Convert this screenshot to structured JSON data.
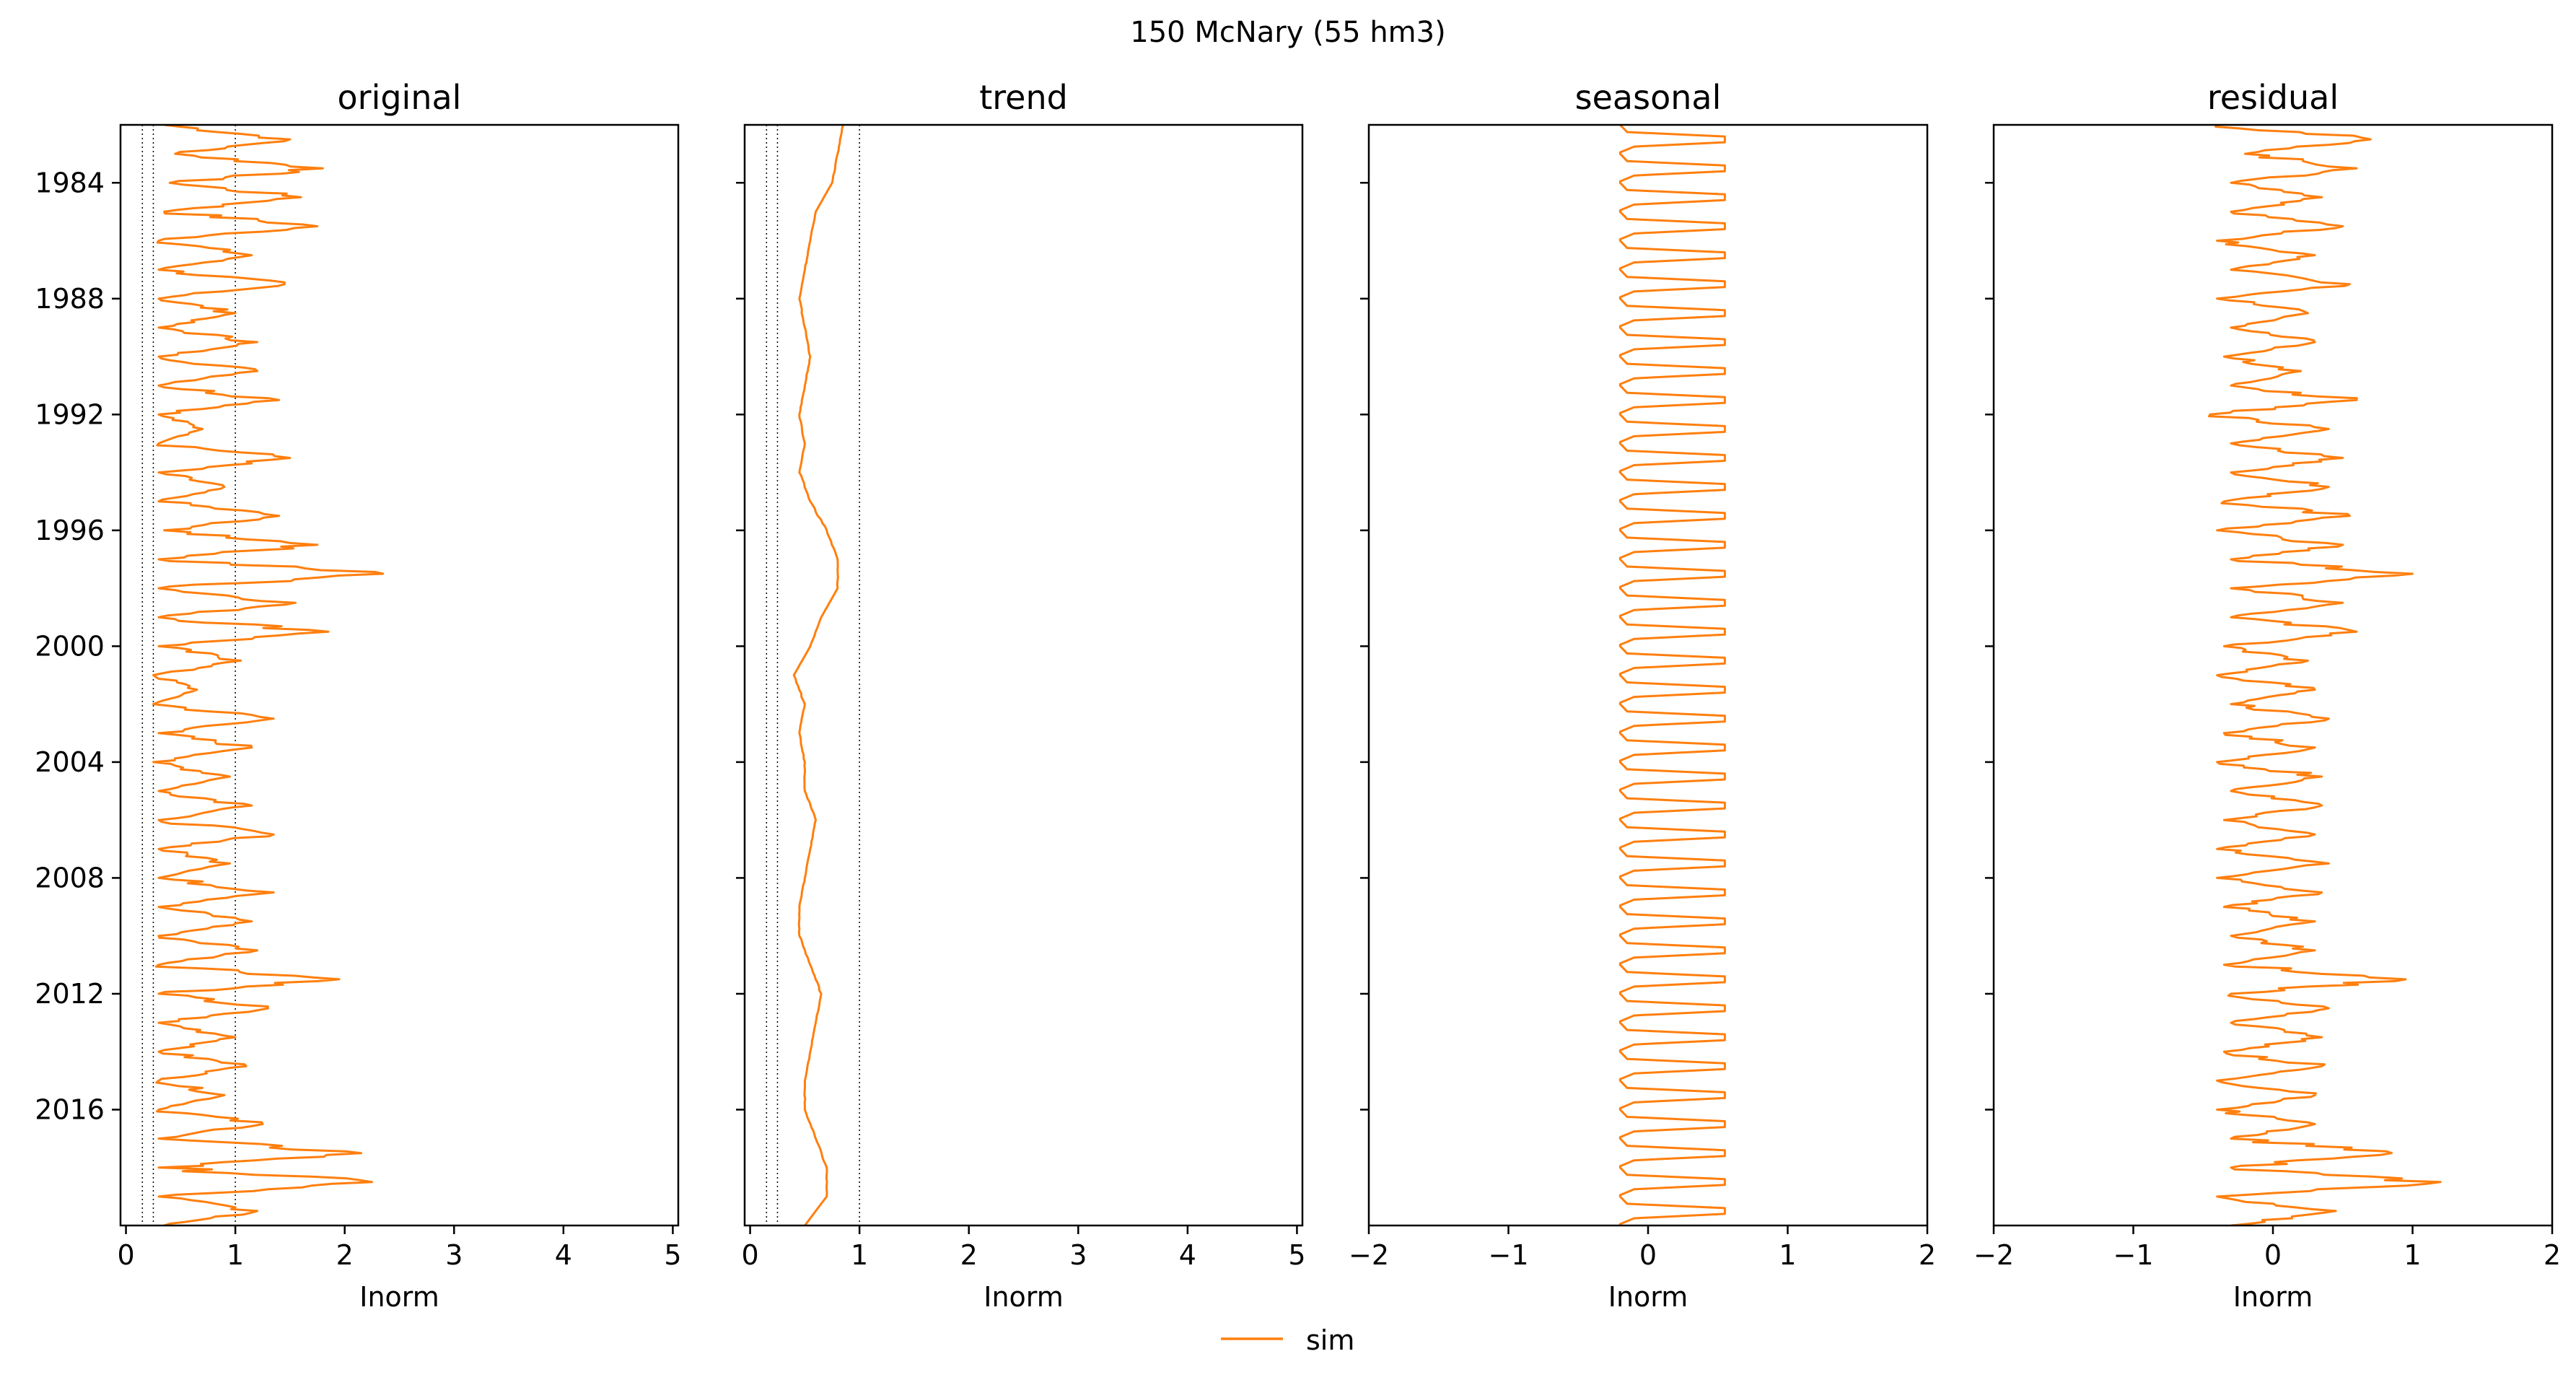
{
  "figure": {
    "suptitle": "150  McNary (55 hm3)",
    "legend": {
      "placement": "bottom-center",
      "entries": [
        {
          "label": "sim",
          "color": "#ff7f0e"
        }
      ]
    }
  },
  "colors": {
    "series": "#ff7f0e",
    "axis": "#000000",
    "reference_lines": "#000000"
  },
  "chart_data": [
    {
      "type": "line",
      "title": "original",
      "xlabel": "Inorm",
      "ylabel": "",
      "xlim": [
        -0.05,
        5.05
      ],
      "ylim_years": [
        1982.0,
        2020.0
      ],
      "y_inverted": true,
      "x_ticks": [
        0,
        1,
        2,
        3,
        4,
        5
      ],
      "x_tick_labels": [
        "0",
        "1",
        "2",
        "3",
        "4",
        "5"
      ],
      "y_ticks": [
        1984,
        1988,
        1992,
        1996,
        2000,
        2004,
        2008,
        2012,
        2016
      ],
      "y_tick_labels": [
        "1984",
        "1988",
        "1992",
        "1996",
        "2000",
        "2004",
        "2008",
        "2012",
        "2016"
      ],
      "reference_lines_x": [
        0.15,
        0.25,
        1.0
      ],
      "grid": false,
      "series": [
        {
          "name": "sim",
          "color": "#ff7f0e",
          "y_years": [
            1982.0,
            1982.5,
            1983.0,
            1983.5,
            1984.0,
            1984.5,
            1985.0,
            1985.5,
            1986.0,
            1986.5,
            1987.0,
            1987.5,
            1988.0,
            1988.5,
            1989.0,
            1989.5,
            1990.0,
            1990.5,
            1991.0,
            1991.5,
            1992.0,
            1992.5,
            1993.0,
            1993.5,
            1994.0,
            1994.5,
            1995.0,
            1995.5,
            1996.0,
            1996.5,
            1997.0,
            1997.5,
            1998.0,
            1998.5,
            1999.0,
            1999.5,
            2000.0,
            2000.5,
            2001.0,
            2001.5,
            2002.0,
            2002.5,
            2003.0,
            2003.5,
            2004.0,
            2004.5,
            2005.0,
            2005.5,
            2006.0,
            2006.5,
            2007.0,
            2007.5,
            2008.0,
            2008.5,
            2009.0,
            2009.5,
            2010.0,
            2010.5,
            2011.0,
            2011.5,
            2012.0,
            2012.5,
            2013.0,
            2013.5,
            2014.0,
            2014.5,
            2015.0,
            2015.5,
            2016.0,
            2016.5,
            2017.0,
            2017.5,
            2018.0,
            2018.5,
            2019.0,
            2019.5,
            2020.0
          ],
          "x": [
            0.35,
            1.5,
            0.45,
            1.8,
            0.4,
            1.6,
            0.35,
            1.75,
            0.3,
            1.15,
            0.3,
            1.45,
            0.3,
            1.0,
            0.3,
            1.2,
            0.3,
            1.2,
            0.3,
            1.4,
            0.3,
            0.7,
            0.3,
            1.5,
            0.3,
            0.9,
            0.3,
            1.4,
            0.35,
            1.75,
            0.3,
            2.35,
            0.3,
            1.55,
            0.3,
            1.85,
            0.3,
            1.05,
            0.25,
            0.65,
            0.25,
            1.35,
            0.3,
            1.15,
            0.25,
            0.95,
            0.3,
            1.15,
            0.3,
            1.35,
            0.3,
            0.95,
            0.3,
            1.35,
            0.3,
            1.15,
            0.3,
            1.2,
            0.3,
            1.95,
            0.3,
            1.3,
            0.3,
            1.0,
            0.3,
            1.1,
            0.3,
            0.9,
            0.3,
            1.25,
            0.3,
            2.15,
            0.3,
            2.25,
            0.3,
            1.2,
            0.35
          ]
        }
      ]
    },
    {
      "type": "line",
      "title": "trend",
      "xlabel": "Inorm",
      "ylabel": "",
      "xlim": [
        -0.05,
        5.05
      ],
      "ylim_years": [
        1982.0,
        2020.0
      ],
      "y_inverted": true,
      "x_ticks": [
        0,
        1,
        2,
        3,
        4,
        5
      ],
      "x_tick_labels": [
        "0",
        "1",
        "2",
        "3",
        "4",
        "5"
      ],
      "y_ticks": [
        1984,
        1988,
        1992,
        1996,
        2000,
        2004,
        2008,
        2012,
        2016
      ],
      "y_tick_labels": [],
      "reference_lines_x": [
        0.15,
        0.25,
        1.0
      ],
      "grid": false,
      "series": [
        {
          "name": "sim",
          "color": "#ff7f0e",
          "y_years": [
            1982.0,
            1983.0,
            1984.0,
            1985.0,
            1986.0,
            1987.0,
            1988.0,
            1989.0,
            1990.0,
            1991.0,
            1992.0,
            1993.0,
            1994.0,
            1995.0,
            1996.0,
            1997.0,
            1998.0,
            1999.0,
            2000.0,
            2001.0,
            2002.0,
            2003.0,
            2004.0,
            2005.0,
            2006.0,
            2007.0,
            2008.0,
            2009.0,
            2010.0,
            2011.0,
            2012.0,
            2013.0,
            2014.0,
            2015.0,
            2016.0,
            2017.0,
            2018.0,
            2019.0,
            2020.0
          ],
          "x": [
            0.85,
            0.8,
            0.75,
            0.6,
            0.55,
            0.5,
            0.45,
            0.5,
            0.55,
            0.5,
            0.45,
            0.5,
            0.45,
            0.55,
            0.7,
            0.8,
            0.8,
            0.65,
            0.55,
            0.4,
            0.5,
            0.45,
            0.5,
            0.5,
            0.6,
            0.55,
            0.5,
            0.45,
            0.45,
            0.55,
            0.65,
            0.6,
            0.55,
            0.5,
            0.5,
            0.6,
            0.7,
            0.7,
            0.5
          ]
        }
      ]
    },
    {
      "type": "line",
      "title": "seasonal",
      "xlabel": "Inorm",
      "ylabel": "",
      "xlim": [
        -2,
        2
      ],
      "ylim_years": [
        1982.0,
        2020.0
      ],
      "y_inverted": true,
      "x_ticks": [
        -2,
        -1,
        0,
        1,
        2
      ],
      "x_tick_labels": [
        "−2",
        "−1",
        "0",
        "1",
        "2"
      ],
      "y_ticks": [
        1984,
        1988,
        1992,
        1996,
        2000,
        2004,
        2008,
        2012,
        2016
      ],
      "y_tick_labels": [],
      "reference_lines_x": [],
      "grid": false,
      "series": [
        {
          "name": "sim",
          "color": "#ff7f0e",
          "annual_cycle_min": -0.2,
          "annual_cycle_max": 0.55,
          "y_range_years": [
            1982.0,
            2020.0
          ]
        }
      ]
    },
    {
      "type": "line",
      "title": "residual",
      "xlabel": "Inorm",
      "ylabel": "",
      "xlim": [
        -2,
        2
      ],
      "ylim_years": [
        1982.0,
        2020.0
      ],
      "y_inverted": true,
      "x_ticks": [
        -2,
        -1,
        0,
        1,
        2
      ],
      "x_tick_labels": [
        "−2",
        "−1",
        "0",
        "1",
        "2"
      ],
      "y_ticks": [
        1984,
        1988,
        1992,
        1996,
        2000,
        2004,
        2008,
        2012,
        2016
      ],
      "y_tick_labels": [],
      "reference_lines_x": [],
      "grid": false,
      "series": [
        {
          "name": "sim",
          "color": "#ff7f0e",
          "y_years": [
            1982.0,
            1982.5,
            1983.0,
            1983.5,
            1984.0,
            1984.5,
            1985.0,
            1985.5,
            1986.0,
            1986.5,
            1987.0,
            1987.5,
            1988.0,
            1988.5,
            1989.0,
            1989.5,
            1990.0,
            1990.5,
            1991.0,
            1991.5,
            1992.0,
            1992.5,
            1993.0,
            1993.5,
            1994.0,
            1994.5,
            1995.0,
            1995.5,
            1996.0,
            1996.5,
            1997.0,
            1997.5,
            1998.0,
            1998.5,
            1999.0,
            1999.5,
            2000.0,
            2000.5,
            2001.0,
            2001.5,
            2002.0,
            2002.5,
            2003.0,
            2003.5,
            2004.0,
            2004.5,
            2005.0,
            2005.5,
            2006.0,
            2006.5,
            2007.0,
            2007.5,
            2008.0,
            2008.5,
            2009.0,
            2009.5,
            2010.0,
            2010.5,
            2011.0,
            2011.5,
            2012.0,
            2012.5,
            2013.0,
            2013.5,
            2014.0,
            2014.5,
            2015.0,
            2015.5,
            2016.0,
            2016.5,
            2017.0,
            2017.5,
            2018.0,
            2018.5,
            2019.0,
            2019.5,
            2020.0
          ],
          "x": [
            -0.4,
            0.7,
            -0.2,
            0.6,
            -0.3,
            0.35,
            -0.3,
            0.5,
            -0.4,
            0.3,
            -0.3,
            0.55,
            -0.4,
            0.25,
            -0.3,
            0.3,
            -0.35,
            0.2,
            -0.3,
            0.6,
            -0.45,
            0.4,
            -0.3,
            0.5,
            -0.3,
            0.4,
            -0.35,
            0.55,
            -0.4,
            0.5,
            -0.3,
            1.0,
            -0.3,
            0.5,
            -0.3,
            0.6,
            -0.35,
            0.25,
            -0.4,
            0.3,
            -0.3,
            0.4,
            -0.35,
            0.3,
            -0.4,
            0.35,
            -0.3,
            0.35,
            -0.35,
            0.3,
            -0.4,
            0.4,
            -0.4,
            0.35,
            -0.35,
            0.3,
            -0.3,
            0.3,
            -0.35,
            0.95,
            -0.3,
            0.4,
            -0.3,
            0.35,
            -0.35,
            0.35,
            -0.4,
            0.3,
            -0.4,
            0.3,
            -0.3,
            0.85,
            -0.3,
            1.2,
            -0.4,
            0.45,
            -0.3
          ]
        }
      ]
    }
  ]
}
